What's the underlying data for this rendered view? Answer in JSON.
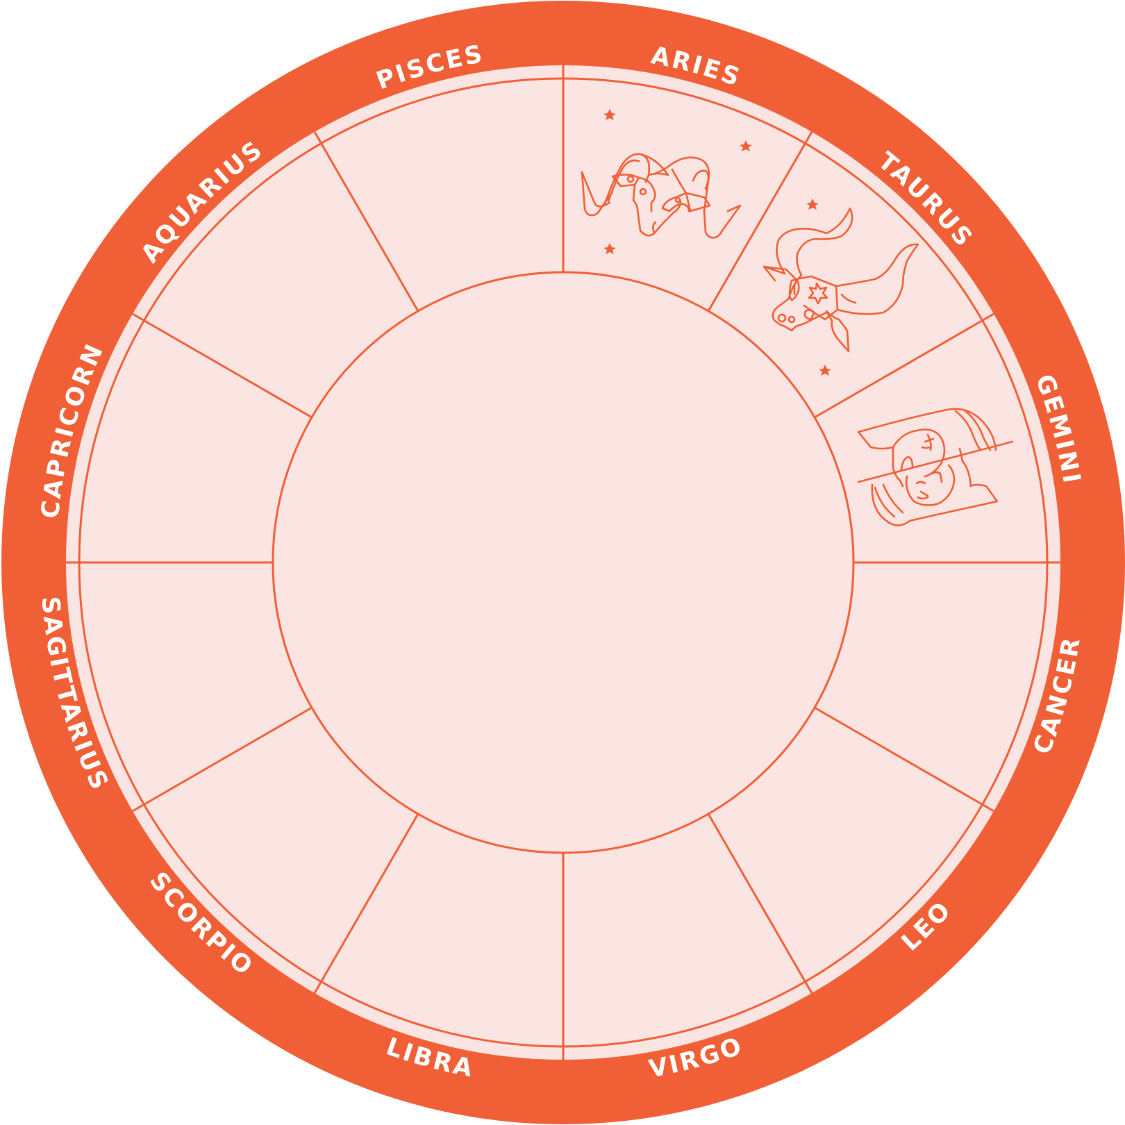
{
  "colors": {
    "accent": "#f05f35",
    "fill": "#fbe5e3",
    "label": "#ffffff"
  },
  "signs": [
    {
      "name": "ARIES",
      "illustrated": true,
      "icon": "ram-icon"
    },
    {
      "name": "TAURUS",
      "illustrated": true,
      "icon": "bull-icon"
    },
    {
      "name": "GEMINI",
      "illustrated": true,
      "icon": "twins-icon"
    },
    {
      "name": "CANCER",
      "illustrated": false
    },
    {
      "name": "LEO",
      "illustrated": false
    },
    {
      "name": "VIRGO",
      "illustrated": false
    },
    {
      "name": "LIBRA",
      "illustrated": false
    },
    {
      "name": "SCORPIO",
      "illustrated": false
    },
    {
      "name": "SAGITTARIUS",
      "illustrated": false
    },
    {
      "name": "CAPRICORN",
      "illustrated": false
    },
    {
      "name": "AQUARIUS",
      "illustrated": false
    },
    {
      "name": "PISCES",
      "illustrated": false
    }
  ]
}
